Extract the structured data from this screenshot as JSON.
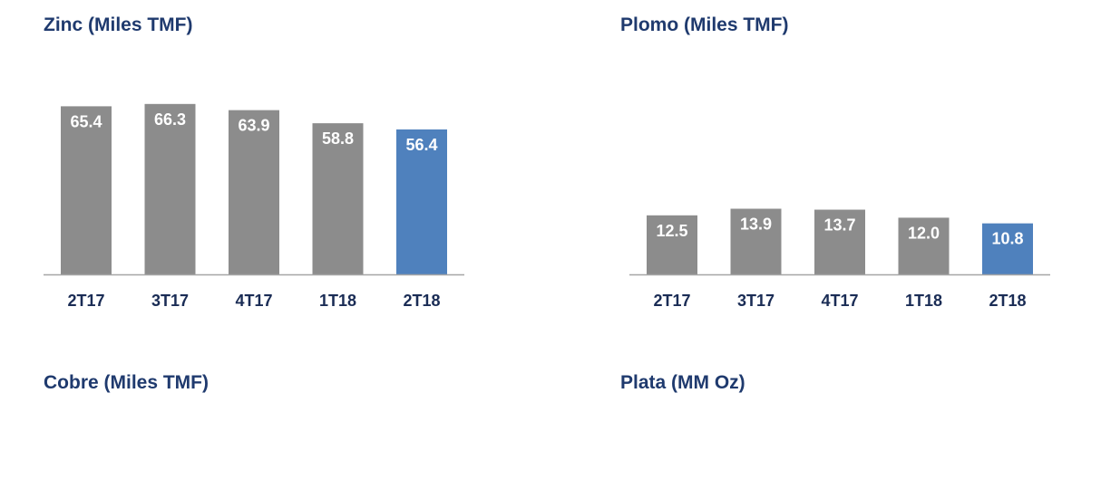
{
  "colors": {
    "title": "#1f3a6e",
    "bar_default": "#8c8c8c",
    "bar_highlight": "#4f81bd",
    "axis": "#a6a6a6",
    "tick": "#1a2c55"
  },
  "panels": {
    "zinc": {
      "title": "Zinc (Miles TMF)"
    },
    "plomo": {
      "title": "Plomo (Miles TMF)"
    },
    "cobre": {
      "title": "Cobre (Miles TMF)"
    },
    "plata": {
      "title": "Plata (MM Oz)"
    }
  },
  "chart_data": [
    {
      "type": "bar",
      "title": "Zinc (Miles TMF)",
      "categories": [
        "2T17",
        "3T17",
        "4T17",
        "1T18",
        "2T18"
      ],
      "values": [
        65.4,
        66.3,
        63.9,
        58.8,
        56.4
      ],
      "highlight_index": 4,
      "ylim": [
        0,
        68
      ],
      "grid": false
    },
    {
      "type": "bar",
      "title": "Plomo (Miles TMF)",
      "categories": [
        "2T17",
        "3T17",
        "4T17",
        "1T18",
        "2T18"
      ],
      "values": [
        12.5,
        13.9,
        13.7,
        12.0,
        10.8
      ],
      "highlight_index": 4,
      "ylim": [
        0,
        37
      ],
      "grid": false
    }
  ]
}
